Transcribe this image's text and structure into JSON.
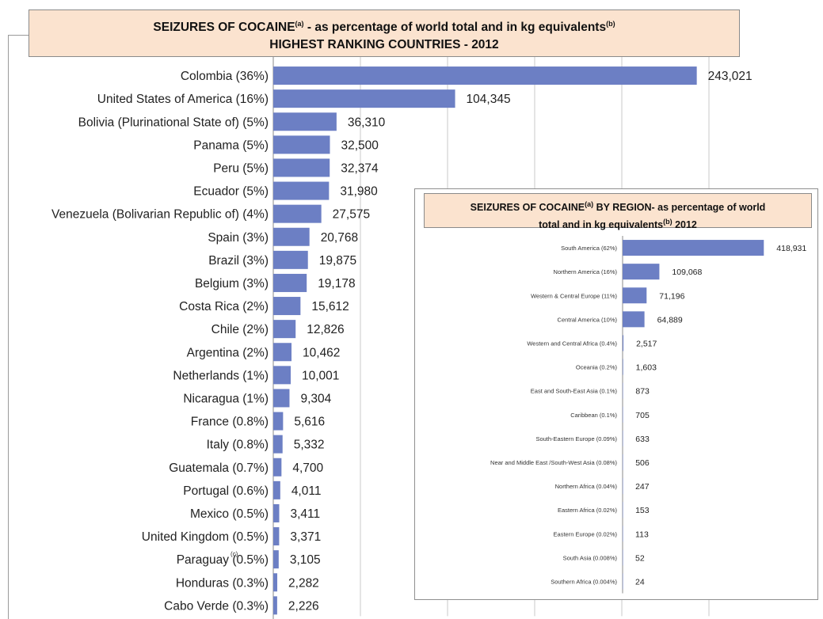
{
  "colors": {
    "bar": "#6c7fc4",
    "header_bg": "#fbe3cf",
    "grid": "#c9c9c9"
  },
  "chart_data": [
    {
      "type": "bar",
      "orientation": "horizontal",
      "title": {
        "line1": "SEIZURES OF COCAINE",
        "line1_sup_a": "(a)",
        "line1_rest": " -  as percentage of world total and in kg equivalents",
        "line1_sup_b": "(b)",
        "line2": "HIGHEST RANKING COUNTRIES - 2012"
      },
      "categories": [
        "Colombia (36%)",
        "United States of America (16%)",
        "Bolivia (Plurinational State of) (5%)",
        "Panama (5%)",
        "Peru (5%)",
        "Ecuador (5%)",
        "Venezuela (Bolivarian Republic of) (4%)",
        "Spain (3%)",
        "Brazil (3%)",
        "Belgium (3%)",
        "Costa Rica (2%)",
        "Chile (2%)",
        "Argentina (2%)",
        "Netherlands (1%)",
        "Nicaragua (1%)",
        "France (0.8%)",
        "Italy (0.8%)",
        "Guatemala (0.7%)",
        "Portugal (0.6%)",
        "Mexico (0.5%)",
        "United Kingdom (0.5%)",
        "Paraguay (0.5%)",
        "Honduras (0.3%)",
        "Cabo Verde (0.3%)"
      ],
      "values": [
        243021,
        104345,
        36310,
        32500,
        32374,
        31980,
        27575,
        20768,
        19875,
        19178,
        15612,
        12826,
        10462,
        10001,
        9304,
        5616,
        5332,
        4700,
        4011,
        3411,
        3371,
        3105,
        2282,
        2226
      ],
      "value_labels": [
        "243,021",
        "104,345",
        "36,310",
        "32,500",
        "32,374",
        "31,980",
        "27,575",
        "20,768",
        "19,875",
        "19,178",
        "15,612",
        "12,826",
        "10,462",
        "10,001",
        "9,304",
        "5,616",
        "5,332",
        "4,700",
        "4,011",
        "3,411",
        "3,371",
        "3,105",
        "2,282",
        "2,226"
      ],
      "annotation": "(c)",
      "annotation_category": "Paraguay (0.5%)",
      "xlim": [
        0,
        250000
      ],
      "grid": true
    },
    {
      "type": "bar",
      "orientation": "horizontal",
      "title": {
        "line1": "SEIZURES OF COCAINE",
        "line1_sup_a": "(a)",
        "line1_rest": "  BY REGION- as percentage of world",
        "line2": "total and in kg equivalents",
        "line2_sup_b": "(b)",
        "line2_rest": "  2012"
      },
      "categories": [
        "South America (62%)",
        "Northern America (16%)",
        "Western & Central Europe (11%)",
        "Central America (10%)",
        "Western and Central Africa (0.4%)",
        "Oceania (0.2%)",
        "East and South-East Asia (0.1%)",
        "Caribbean (0.1%)",
        "South-Eastern Europe (0.09%)",
        "Near and Middle East /South-West Asia (0.08%)",
        "Northern Africa (0.04%)",
        "Eastern Africa (0.02%)",
        "Eastern Europe (0.02%)",
        "South Asia (0.008%)",
        "Southern Africa (0.004%)"
      ],
      "values": [
        418931,
        109068,
        71196,
        64889,
        2517,
        1603,
        873,
        705,
        633,
        506,
        247,
        153,
        113,
        52,
        24
      ],
      "value_labels": [
        "418,931",
        "109,068",
        "71,196",
        "64,889",
        "2,517",
        "1,603",
        "873",
        "705",
        "633",
        "506",
        "247",
        "153",
        "113",
        "52",
        "24"
      ],
      "xlim": [
        0,
        430000
      ],
      "grid": false
    }
  ]
}
